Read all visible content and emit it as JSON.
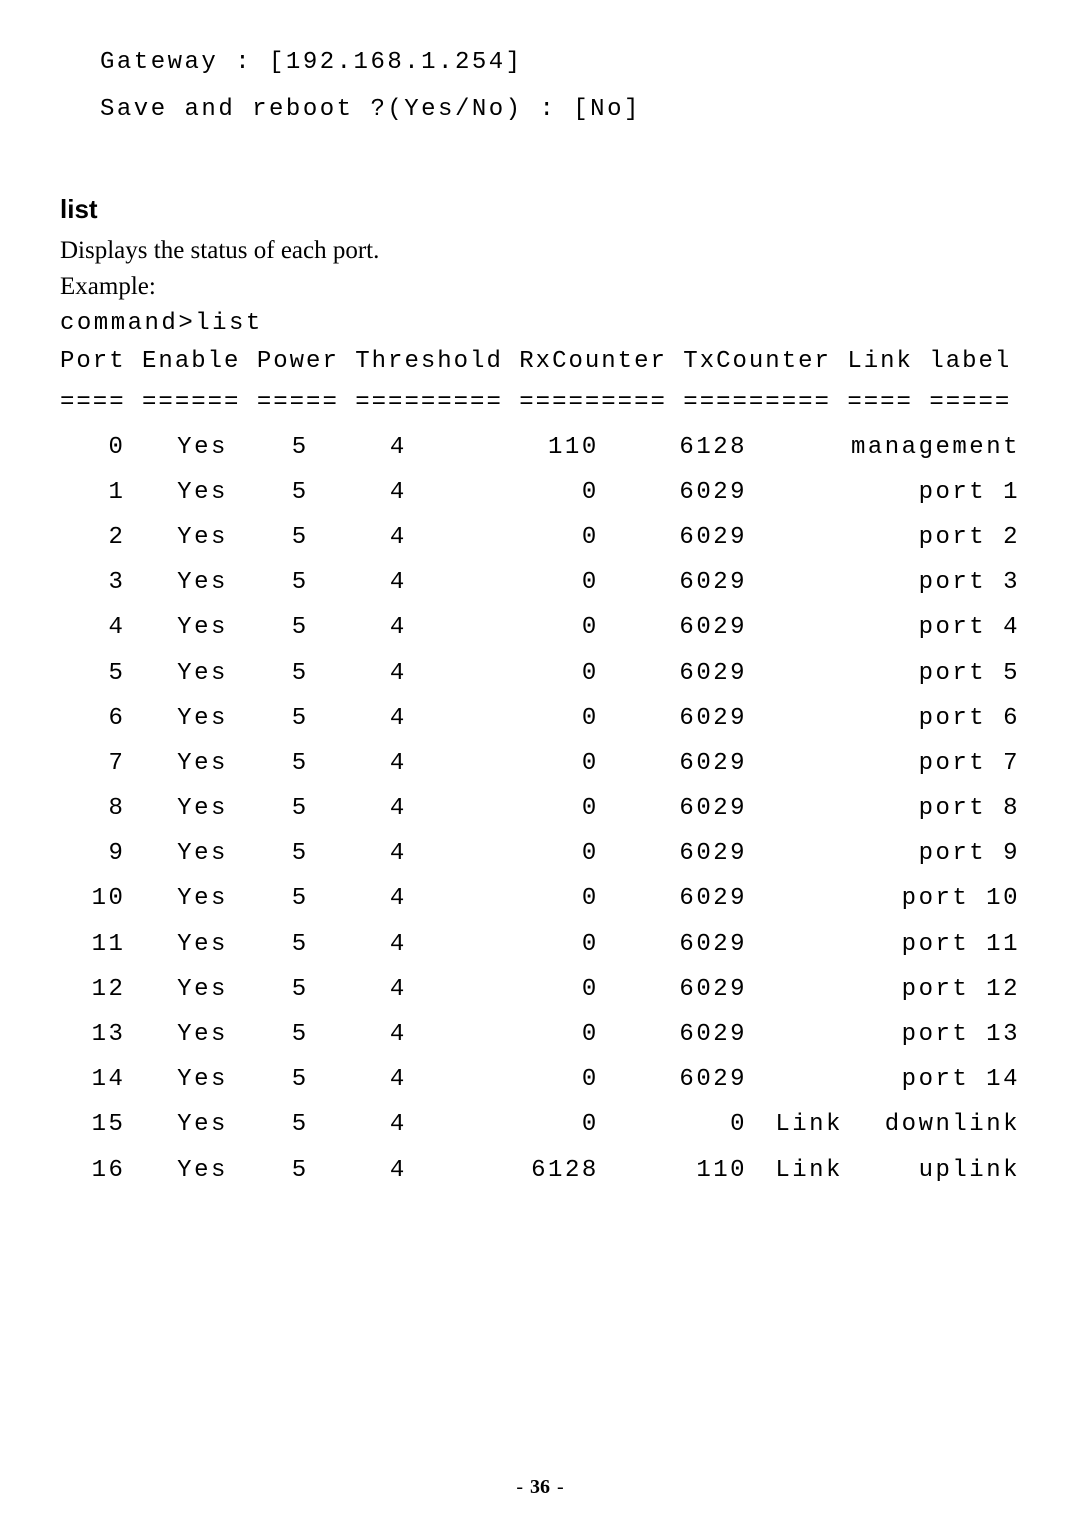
{
  "intro": {
    "gateway_line": "Gateway : [192.168.1.254]",
    "save_line": "Save and reboot ?(Yes/No) : [No]"
  },
  "section": {
    "heading": "list",
    "description": "Displays the status of each port.",
    "example_label": "Example:",
    "command_line": "command>list"
  },
  "table": {
    "header_text": "Port Enable Power Threshold RxCounter TxCounter Link label",
    "separator_text": "==== ====== ===== ========= ========= ========= ==== =====",
    "columns": [
      "Port",
      "Enable",
      "Power",
      "Threshold",
      "RxCounter",
      "TxCounter",
      "Link",
      "label"
    ],
    "rows": [
      {
        "port": "0",
        "enable": "Yes",
        "power": "5",
        "threshold": "4",
        "rx": "110",
        "tx": "6128",
        "link": "",
        "label": "management"
      },
      {
        "port": "1",
        "enable": "Yes",
        "power": "5",
        "threshold": "4",
        "rx": "0",
        "tx": "6029",
        "link": "",
        "label": "port 1"
      },
      {
        "port": "2",
        "enable": "Yes",
        "power": "5",
        "threshold": "4",
        "rx": "0",
        "tx": "6029",
        "link": "",
        "label": "port 2"
      },
      {
        "port": "3",
        "enable": "Yes",
        "power": "5",
        "threshold": "4",
        "rx": "0",
        "tx": "6029",
        "link": "",
        "label": "port 3"
      },
      {
        "port": "4",
        "enable": "Yes",
        "power": "5",
        "threshold": "4",
        "rx": "0",
        "tx": "6029",
        "link": "",
        "label": "port 4"
      },
      {
        "port": "5",
        "enable": "Yes",
        "power": "5",
        "threshold": "4",
        "rx": "0",
        "tx": "6029",
        "link": "",
        "label": "port 5"
      },
      {
        "port": "6",
        "enable": "Yes",
        "power": "5",
        "threshold": "4",
        "rx": "0",
        "tx": "6029",
        "link": "",
        "label": "port 6"
      },
      {
        "port": "7",
        "enable": "Yes",
        "power": "5",
        "threshold": "4",
        "rx": "0",
        "tx": "6029",
        "link": "",
        "label": "port 7"
      },
      {
        "port": "8",
        "enable": "Yes",
        "power": "5",
        "threshold": "4",
        "rx": "0",
        "tx": "6029",
        "link": "",
        "label": "port 8"
      },
      {
        "port": "9",
        "enable": "Yes",
        "power": "5",
        "threshold": "4",
        "rx": "0",
        "tx": "6029",
        "link": "",
        "label": "port 9"
      },
      {
        "port": "10",
        "enable": "Yes",
        "power": "5",
        "threshold": "4",
        "rx": "0",
        "tx": "6029",
        "link": "",
        "label": "port 10"
      },
      {
        "port": "11",
        "enable": "Yes",
        "power": "5",
        "threshold": "4",
        "rx": "0",
        "tx": "6029",
        "link": "",
        "label": "port 11"
      },
      {
        "port": "12",
        "enable": "Yes",
        "power": "5",
        "threshold": "4",
        "rx": "0",
        "tx": "6029",
        "link": "",
        "label": "port 12"
      },
      {
        "port": "13",
        "enable": "Yes",
        "power": "5",
        "threshold": "4",
        "rx": "0",
        "tx": "6029",
        "link": "",
        "label": "port 13"
      },
      {
        "port": "14",
        "enable": "Yes",
        "power": "5",
        "threshold": "4",
        "rx": "0",
        "tx": "6029",
        "link": "",
        "label": "port 14"
      },
      {
        "port": "15",
        "enable": "Yes",
        "power": "5",
        "threshold": "4",
        "rx": "0",
        "tx": "0",
        "link": "Link",
        "label": "downlink"
      },
      {
        "port": "16",
        "enable": "Yes",
        "power": "5",
        "threshold": "4",
        "rx": "6128",
        "tx": "110",
        "link": "Link",
        "label": "uplink"
      }
    ]
  },
  "page_number": "36",
  "styling": {
    "background_color": "#ffffff",
    "text_color": "#000000",
    "mono_fontsize": 24,
    "heading_fontsize": 26,
    "body_fontsize": 25,
    "pagewidth": 1080,
    "pageheight": 1529
  }
}
